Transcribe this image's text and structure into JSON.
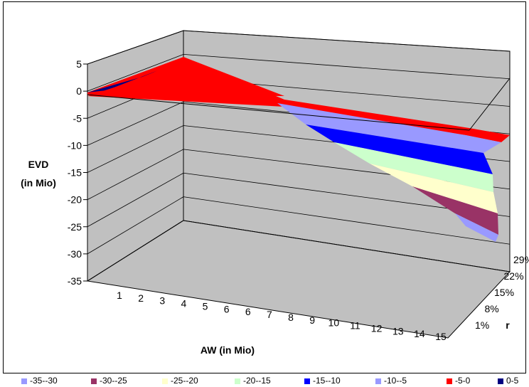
{
  "chart_data": {
    "type": "surface",
    "zlabel": "EVD\n(in Mio)",
    "xlabel": "AW (in Mio)",
    "ylabel": "r",
    "z_ticks": [
      "5",
      "0",
      "-5",
      "-10",
      "-15",
      "-20",
      "-25",
      "-30",
      "-35"
    ],
    "zlim": [
      -35,
      5
    ],
    "x_ticks": [
      "1",
      "2",
      "3",
      "4",
      "5",
      "6",
      "6",
      "7",
      "8",
      "9",
      "10",
      "11",
      "12",
      "13",
      "14",
      "15"
    ],
    "y_ticks": [
      "29%",
      "22%",
      "15%",
      "8%",
      "1%"
    ],
    "legend": [
      {
        "label": "-35--30",
        "color": "#9999ff"
      },
      {
        "label": "-30--25",
        "color": "#993366"
      },
      {
        "label": "-25--20",
        "color": "#ffffcc"
      },
      {
        "label": "-20--15",
        "color": "#ccffcc"
      },
      {
        "label": "-15--10",
        "color": "#0000ff"
      },
      {
        "label": "-10--5",
        "color": "#9999ff"
      },
      {
        "label": "-5-0",
        "color": "#ff0000"
      },
      {
        "label": "0-5",
        "color": "#000080"
      }
    ]
  }
}
